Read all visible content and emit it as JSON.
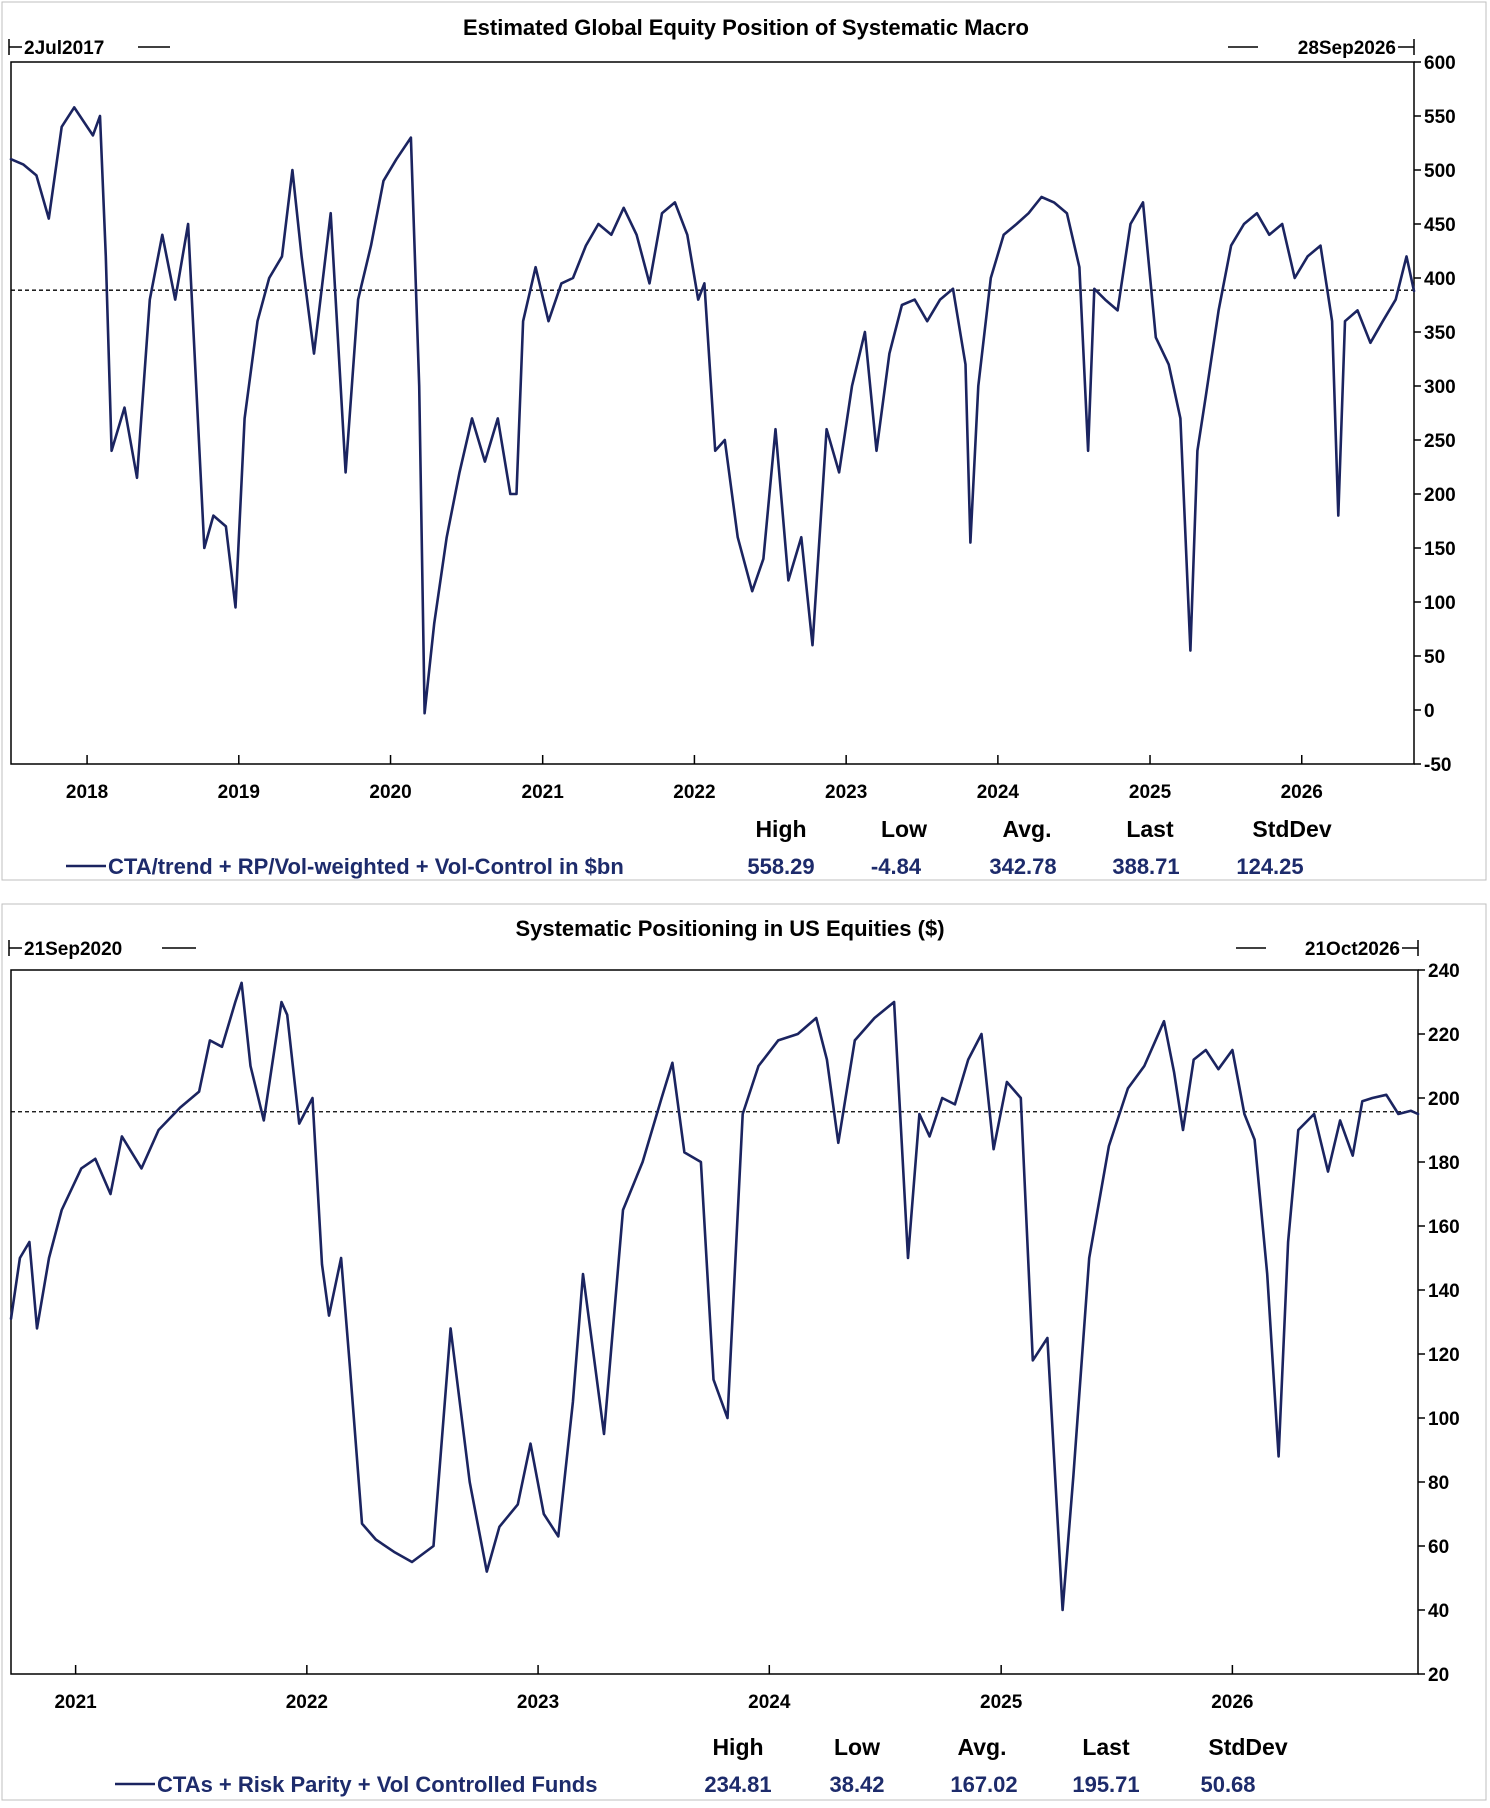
{
  "line_color": "#1b2460",
  "chart_data": [
    {
      "type": "line",
      "title": "Estimated Global Equity Position of Systematic Macro",
      "start_date_label": "2Jul2017",
      "end_date_label": "28Sep2026",
      "x_tick_labels": [
        "2018",
        "2019",
        "2020",
        "2021",
        "2022",
        "2023",
        "2024",
        "2025",
        "2026"
      ],
      "y_tick_labels": [
        "600",
        "550",
        "500",
        "450",
        "400",
        "350",
        "300",
        "250",
        "200",
        "150",
        "100",
        "50",
        "0",
        "-50"
      ],
      "ylim": [
        -50,
        600
      ],
      "xlim": [
        "2017-07-02",
        "2026-09-28"
      ],
      "reference_line": 388.71,
      "grid": false,
      "legend_placement": "bottom-left",
      "series": [
        {
          "name": "CTA/trend + RP/Vol-weighted + Vol-Control in $bn",
          "x": [
            "2017-07-02",
            "2017-08-01",
            "2017-09-01",
            "2017-10-01",
            "2017-11-01",
            "2017-12-01",
            "2018-01-15",
            "2018-02-01",
            "2018-02-15",
            "2018-03-01",
            "2018-04-01",
            "2018-05-01",
            "2018-06-01",
            "2018-07-01",
            "2018-08-01",
            "2018-09-01",
            "2018-10-10",
            "2018-11-01",
            "2018-12-01",
            "2018-12-24",
            "2019-01-15",
            "2019-02-15",
            "2019-03-15",
            "2019-04-15",
            "2019-05-10",
            "2019-06-01",
            "2019-07-01",
            "2019-08-10",
            "2019-09-15",
            "2019-10-15",
            "2019-11-15",
            "2019-12-15",
            "2020-01-15",
            "2020-02-19",
            "2020-03-10",
            "2020-03-23",
            "2020-04-15",
            "2020-05-15",
            "2020-06-15",
            "2020-07-15",
            "2020-08-15",
            "2020-09-15",
            "2020-10-15",
            "2020-10-30",
            "2020-11-15",
            "2020-12-15",
            "2021-01-15",
            "2021-02-15",
            "2021-03-15",
            "2021-04-15",
            "2021-05-15",
            "2021-06-15",
            "2021-07-15",
            "2021-08-15",
            "2021-09-15",
            "2021-10-15",
            "2021-11-15",
            "2021-12-15",
            "2022-01-10",
            "2022-01-25",
            "2022-02-20",
            "2022-03-15",
            "2022-04-15",
            "2022-05-20",
            "2022-06-16",
            "2022-07-15",
            "2022-08-15",
            "2022-09-15",
            "2022-10-12",
            "2022-11-15",
            "2022-12-15",
            "2023-01-15",
            "2023-02-15",
            "2023-03-15",
            "2023-04-15",
            "2023-05-15",
            "2023-06-15",
            "2023-07-15",
            "2023-08-15",
            "2023-09-15",
            "2023-10-15",
            "2023-10-27",
            "2023-11-15",
            "2023-12-15",
            "2024-01-15",
            "2024-02-15",
            "2024-03-15",
            "2024-04-15",
            "2024-05-15",
            "2024-06-15",
            "2024-07-15",
            "2024-08-05",
            "2024-08-20",
            "2024-09-15",
            "2024-10-15",
            "2024-11-15",
            "2024-12-15",
            "2025-01-15",
            "2025-02-15",
            "2025-03-15",
            "2025-04-08",
            "2025-04-25",
            "2025-05-15",
            "2025-06-15",
            "2025-07-15",
            "2025-08-15",
            "2025-09-15",
            "2025-10-15",
            "2025-11-15",
            "2025-12-15",
            "2026-01-15",
            "2026-02-15",
            "2026-03-15",
            "2026-03-30",
            "2026-04-15",
            "2026-05-15",
            "2026-06-15",
            "2026-07-15",
            "2026-08-15",
            "2026-09-10",
            "2026-09-28"
          ],
          "y": [
            510,
            505,
            495,
            455,
            540,
            558,
            532,
            550,
            420,
            240,
            280,
            215,
            380,
            440,
            380,
            450,
            150,
            180,
            170,
            95,
            270,
            360,
            400,
            420,
            500,
            420,
            330,
            460,
            220,
            380,
            430,
            490,
            510,
            530,
            300,
            -3,
            80,
            160,
            220,
            270,
            230,
            270,
            200,
            200,
            360,
            410,
            360,
            395,
            400,
            430,
            450,
            440,
            465,
            440,
            395,
            460,
            470,
            440,
            380,
            395,
            240,
            250,
            160,
            110,
            140,
            260,
            120,
            160,
            60,
            260,
            220,
            300,
            350,
            240,
            330,
            375,
            380,
            360,
            380,
            390,
            320,
            155,
            300,
            400,
            440,
            450,
            460,
            475,
            470,
            460,
            410,
            240,
            390,
            380,
            370,
            450,
            470,
            345,
            320,
            270,
            55,
            240,
            290,
            370,
            430,
            450,
            460,
            440,
            450,
            400,
            420,
            430,
            360,
            180,
            360,
            370,
            340,
            360,
            380,
            420,
            388
          ]
        }
      ],
      "stats": {
        "headers": [
          "High",
          "Low",
          "Avg.",
          "Last",
          "StdDev"
        ],
        "values": [
          "558.29",
          "-4.84",
          "342.78",
          "388.71",
          "124.25"
        ]
      }
    },
    {
      "type": "line",
      "title": "Systematic Positioning in US Equities ($)",
      "start_date_label": "21Sep2020",
      "end_date_label": "21Oct2026",
      "x_tick_labels": [
        "2021",
        "2022",
        "2023",
        "2024",
        "2025",
        "2026"
      ],
      "y_tick_labels": [
        "240",
        "220",
        "200",
        "180",
        "160",
        "140",
        "120",
        "100",
        "80",
        "60",
        "40",
        "20"
      ],
      "ylim": [
        20,
        240
      ],
      "xlim": [
        "2020-09-21",
        "2026-10-21"
      ],
      "reference_line": 195.71,
      "grid": false,
      "legend_placement": "bottom-left",
      "series": [
        {
          "name": "CTAs + Risk Parity + Vol Controlled Funds",
          "x": [
            "2020-09-21",
            "2020-10-05",
            "2020-10-20",
            "2020-11-01",
            "2020-11-20",
            "2020-12-10",
            "2021-01-10",
            "2021-02-01",
            "2021-02-25",
            "2021-03-15",
            "2021-04-15",
            "2021-05-12",
            "2021-06-15",
            "2021-07-15",
            "2021-08-01",
            "2021-08-20",
            "2021-09-10",
            "2021-09-20",
            "2021-10-04",
            "2021-10-25",
            "2021-11-22",
            "2021-12-01",
            "2021-12-20",
            "2022-01-10",
            "2022-01-25",
            "2022-02-05",
            "2022-02-24",
            "2022-03-10",
            "2022-03-29",
            "2022-04-20",
            "2022-05-20",
            "2022-06-16",
            "2022-07-20",
            "2022-08-16",
            "2022-09-15",
            "2022-10-12",
            "2022-11-01",
            "2022-11-30",
            "2022-12-20",
            "2023-01-10",
            "2023-02-02",
            "2023-02-25",
            "2023-03-13",
            "2023-04-15",
            "2023-05-15",
            "2023-06-15",
            "2023-07-15",
            "2023-08-01",
            "2023-08-20",
            "2023-09-15",
            "2023-10-05",
            "2023-10-27",
            "2023-11-20",
            "2023-12-15",
            "2024-01-15",
            "2024-02-15",
            "2024-03-15",
            "2024-04-01",
            "2024-04-19",
            "2024-05-15",
            "2024-06-15",
            "2024-07-16",
            "2024-08-07",
            "2024-08-25",
            "2024-09-10",
            "2024-09-30",
            "2024-10-20",
            "2024-11-10",
            "2024-12-01",
            "2024-12-20",
            "2025-01-10",
            "2025-02-01",
            "2025-02-20",
            "2025-03-15",
            "2025-04-08",
            "2025-04-25",
            "2025-05-20",
            "2025-06-20",
            "2025-07-20",
            "2025-08-15",
            "2025-09-15",
            "2025-10-01",
            "2025-10-15",
            "2025-11-01",
            "2025-11-20",
            "2025-12-10",
            "2026-01-01",
            "2026-01-20",
            "2026-02-05",
            "2026-02-25",
            "2026-03-15",
            "2026-03-30",
            "2026-04-15",
            "2026-05-10",
            "2026-06-01",
            "2026-06-20",
            "2026-07-10",
            "2026-07-25",
            "2026-08-10",
            "2026-09-01",
            "2026-09-20",
            "2026-10-10",
            "2026-10-21"
          ],
          "y": [
            131,
            150,
            155,
            128,
            150,
            165,
            178,
            181,
            170,
            188,
            178,
            190,
            197,
            202,
            218,
            216,
            230,
            236,
            210,
            193,
            230,
            226,
            192,
            200,
            148,
            132,
            150,
            116,
            67,
            62,
            58,
            55,
            60,
            128,
            80,
            52,
            66,
            73,
            92,
            70,
            63,
            105,
            145,
            95,
            165,
            180,
            200,
            211,
            183,
            180,
            112,
            100,
            195,
            210,
            218,
            220,
            225,
            212,
            186,
            218,
            225,
            230,
            150,
            195,
            188,
            200,
            198,
            212,
            220,
            184,
            205,
            200,
            118,
            125,
            40,
            82,
            150,
            185,
            203,
            210,
            224,
            208,
            190,
            212,
            215,
            209,
            215,
            195,
            187,
            145,
            88,
            155,
            190,
            195,
            177,
            193,
            182,
            199,
            200,
            201,
            195,
            196,
            195
          ]
        }
      ],
      "stats": {
        "headers": [
          "High",
          "Low",
          "Avg.",
          "Last",
          "StdDev"
        ],
        "values": [
          "234.81",
          "38.42",
          "167.02",
          "195.71",
          "50.68"
        ]
      }
    }
  ]
}
